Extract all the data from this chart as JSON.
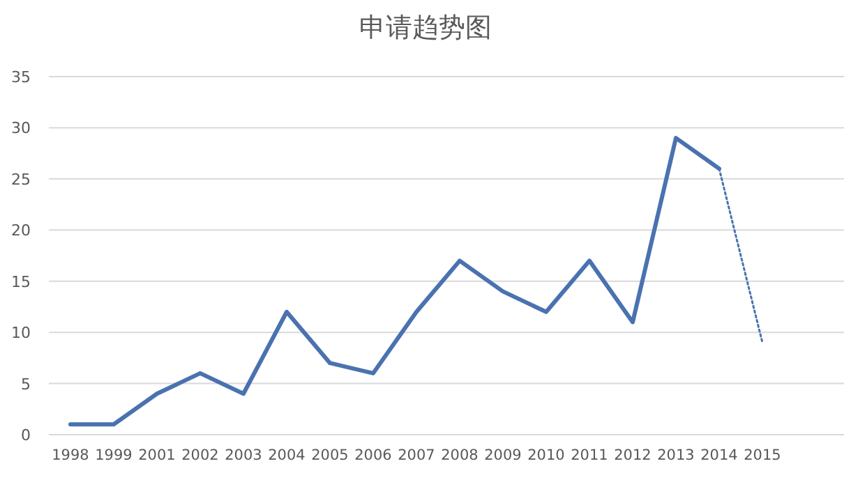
{
  "chart_data": {
    "type": "line",
    "title": "申请趋势图",
    "categories": [
      "1998",
      "1999",
      "2001",
      "2002",
      "2003",
      "2004",
      "2005",
      "2006",
      "2007",
      "2008",
      "2009",
      "2010",
      "2011",
      "2012",
      "2013",
      "2014",
      "2015"
    ],
    "series": [
      {
        "color": "#4a72b0",
        "line_style": "solid",
        "values": [
          1,
          1,
          4,
          6,
          4,
          12,
          7,
          6,
          12,
          17,
          14,
          12,
          17,
          11,
          29,
          26,
          null
        ]
      },
      {
        "color": "#4a72b0",
        "line_style": "dotted",
        "values": [
          null,
          null,
          null,
          null,
          null,
          null,
          null,
          null,
          null,
          null,
          null,
          null,
          null,
          null,
          null,
          26,
          9
        ]
      }
    ],
    "ylim": [
      0,
      35
    ],
    "yticks": [
      0,
      5,
      10,
      15,
      20,
      25,
      30,
      35
    ],
    "grid": "y",
    "marker": "none"
  }
}
